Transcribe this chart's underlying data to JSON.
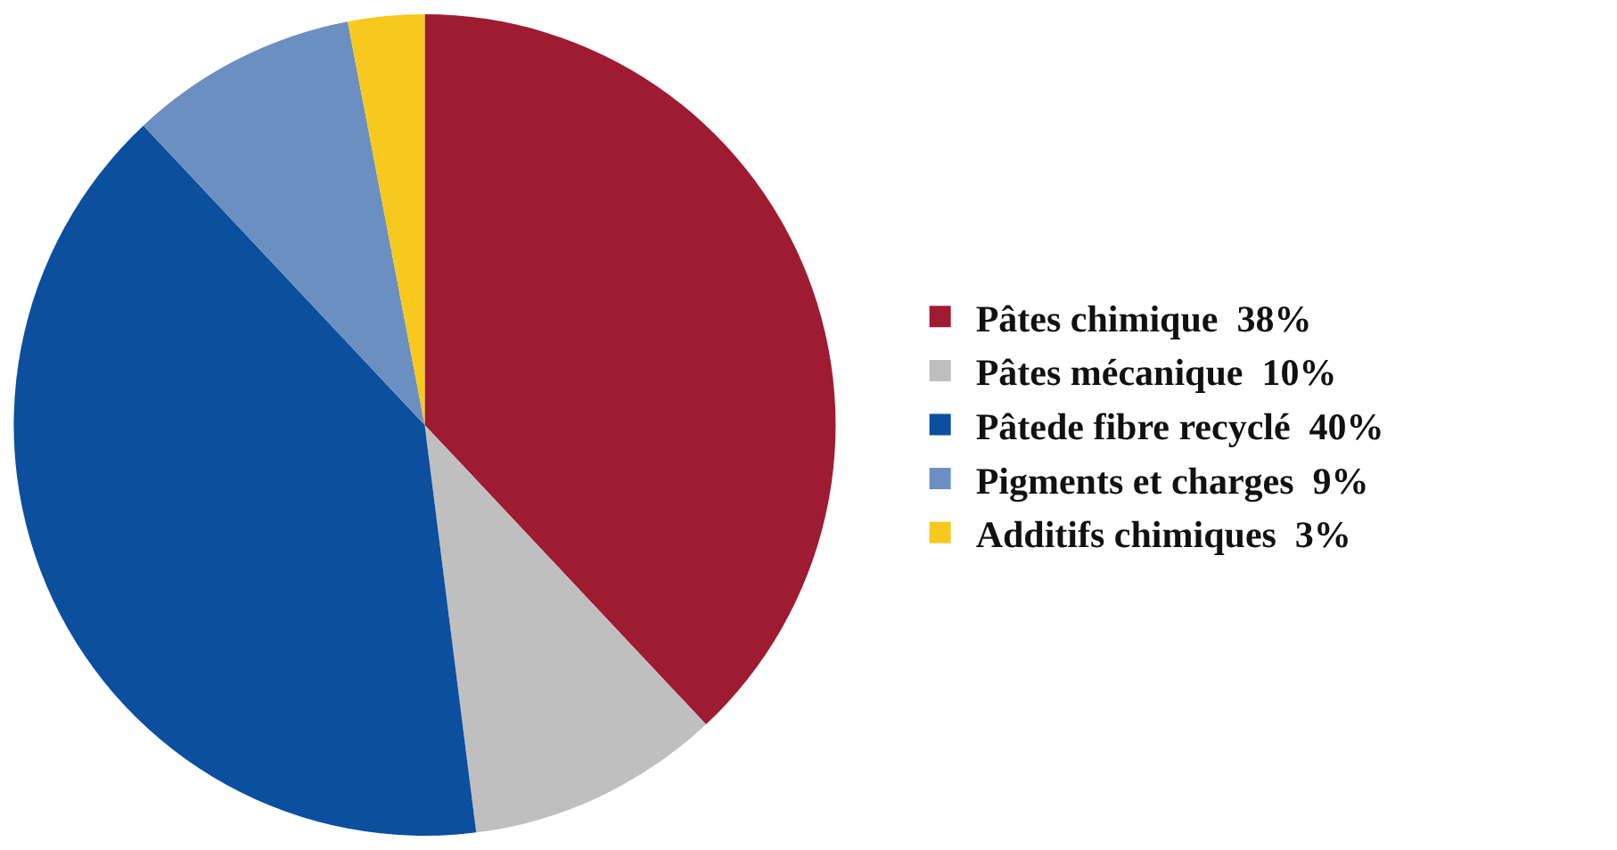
{
  "chart_data": {
    "type": "pie",
    "categories": [
      "Pâtes chimique  38%",
      "Pâtes mécanique  10%",
      "Pâtede fibre recyclé  40%",
      "Pigments et charges  9%",
      "Additifs chimiques  3%"
    ],
    "values": [
      38,
      10,
      40,
      9,
      3
    ],
    "colors": [
      "#9e1b32",
      "#bfbfbf",
      "#0b4f9e",
      "#6b8fc0",
      "#f7c81e"
    ],
    "legend": "right"
  }
}
